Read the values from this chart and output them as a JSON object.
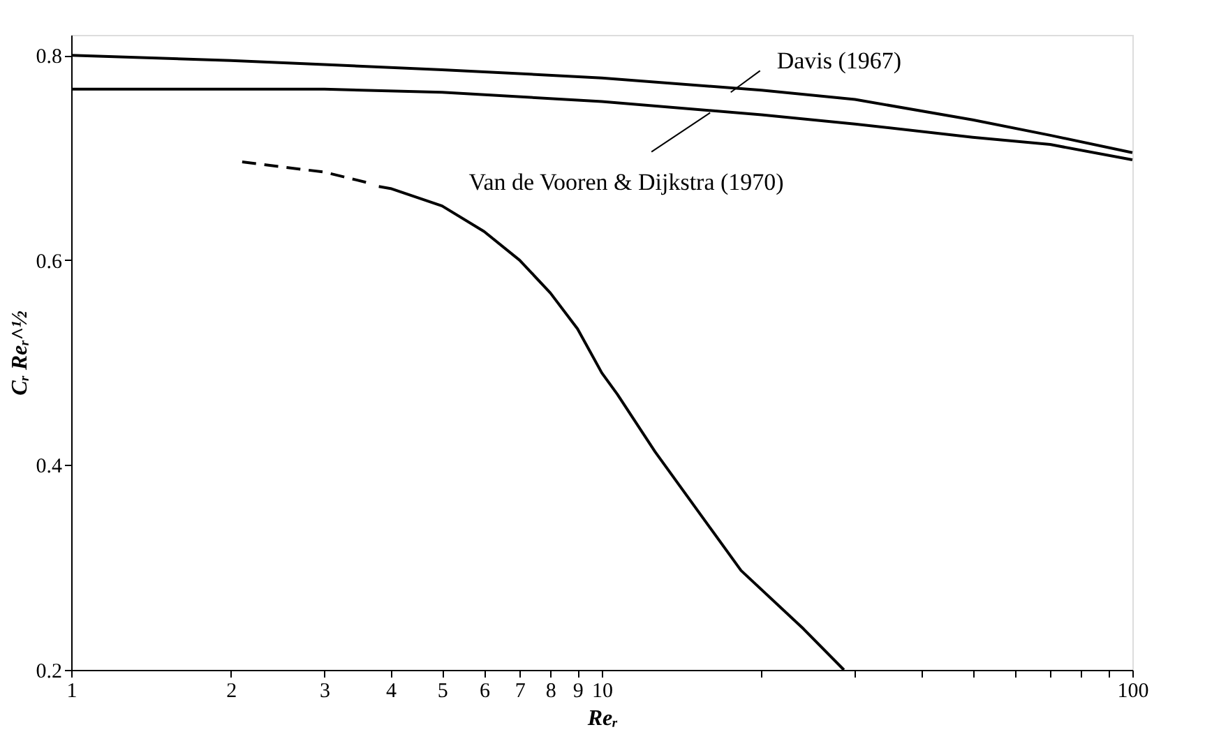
{
  "chart_data": {
    "type": "line",
    "xlabel": "Reᵣ",
    "ylabel": "Cᵣ Reᵣ^½",
    "log": "x",
    "xlim": [
      1,
      100
    ],
    "ylim": [
      0.2,
      0.82
    ],
    "xticks": [
      {
        "value": 1,
        "label": "1"
      },
      {
        "value": 2,
        "label": "2"
      },
      {
        "value": 3,
        "label": "3"
      },
      {
        "value": 4,
        "label": "4"
      },
      {
        "value": 5,
        "label": "5"
      },
      {
        "value": 6,
        "label": "6"
      },
      {
        "value": 7,
        "label": "7"
      },
      {
        "value": 8,
        "label": "8"
      },
      {
        "value": 9,
        "label": "9"
      },
      {
        "value": 10,
        "label": "10"
      },
      {
        "value": 20,
        "label": null
      },
      {
        "value": 30,
        "label": null
      },
      {
        "value": 40,
        "label": null
      },
      {
        "value": 50,
        "label": null
      },
      {
        "value": 60,
        "label": null
      },
      {
        "value": 70,
        "label": null
      },
      {
        "value": 80,
        "label": null
      },
      {
        "value": 90,
        "label": null
      },
      {
        "value": 100,
        "label": "100"
      }
    ],
    "yticks": [
      0.2,
      0.4,
      0.6,
      0.8
    ],
    "grid": false,
    "marker": "none",
    "series": [
      {
        "color": "#000000",
        "line_style": "solid",
        "x": [
          1,
          2,
          3,
          5,
          10,
          20,
          30,
          50,
          70,
          100
        ],
        "values": [
          0.8,
          0.795,
          0.791,
          0.786,
          0.778,
          0.766,
          0.757,
          0.737,
          0.722,
          0.705
        ]
      },
      {
        "color": "#000000",
        "line_style": "solid",
        "x": [
          1,
          3,
          5,
          10,
          20,
          30,
          50,
          70,
          100
        ],
        "values": [
          0.767,
          0.767,
          0.764,
          0.755,
          0.742,
          0.733,
          0.72,
          0.713,
          0.698
        ]
      },
      {
        "color": "#000000",
        "line_style": "dashed",
        "x": [
          2.1,
          3,
          3.6
        ],
        "values": [
          0.696,
          0.686,
          0.676
        ]
      },
      {
        "color": "#000000",
        "line_style": "solid",
        "x": [
          3.8,
          4,
          5,
          6,
          7,
          8,
          9,
          10,
          10.7,
          12.6,
          18.3,
          24,
          28.6
        ],
        "values": [
          0.672,
          0.67,
          0.653,
          0.628,
          0.6,
          0.568,
          0.533,
          0.49,
          0.469,
          0.413,
          0.297,
          0.24,
          0.2
        ]
      }
    ],
    "annotations": [
      {
        "text": "Davis (1967)",
        "x": 17.5,
        "y": 0.764
      },
      {
        "text": "Van de Vooren & Dijkstra (1970)",
        "x": 16,
        "y": 0.744
      }
    ]
  }
}
